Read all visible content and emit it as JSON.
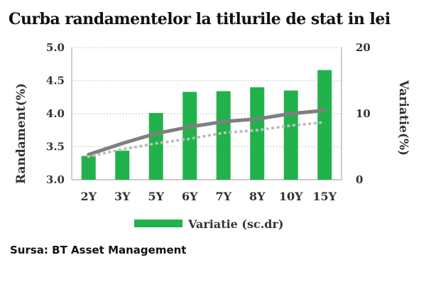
{
  "title": "Curba randamentelor la titlurile de stat in lei",
  "source": "Sursa: BT Asset Management",
  "chart_data": {
    "type": "bar",
    "categories": [
      "2Y",
      "3Y",
      "5Y",
      "6Y",
      "7Y",
      "8Y",
      "10Y",
      "15Y"
    ],
    "series": [
      {
        "name": "Variatie (sc.dr)",
        "type": "bar",
        "axis": "right",
        "color": "#22b24c",
        "values": [
          3.6,
          4.4,
          10.1,
          13.3,
          13.4,
          14.0,
          13.5,
          16.6
        ]
      },
      {
        "type": "line",
        "axis": "left",
        "color": "#7f7f7f",
        "style": "solid",
        "values": [
          3.38,
          3.55,
          3.7,
          3.8,
          3.88,
          3.92,
          4.0,
          4.05
        ]
      },
      {
        "type": "line",
        "axis": "left",
        "color": "#bdbdbd",
        "style": "dotted",
        "values": [
          3.35,
          3.46,
          3.55,
          3.62,
          3.71,
          3.75,
          3.82,
          3.87
        ]
      }
    ],
    "ylabel": "Randament(%)",
    "y2label": "Variatie(%)",
    "ylim": [
      3.0,
      5.0
    ],
    "y2lim": [
      0,
      20
    ],
    "yticks": [
      "3.0",
      "3.5",
      "4.0",
      "4.5",
      "5.0"
    ],
    "y2ticks": [
      "0",
      "10",
      "20"
    ],
    "grid": "dotted horizontal",
    "legend": "bottom"
  }
}
